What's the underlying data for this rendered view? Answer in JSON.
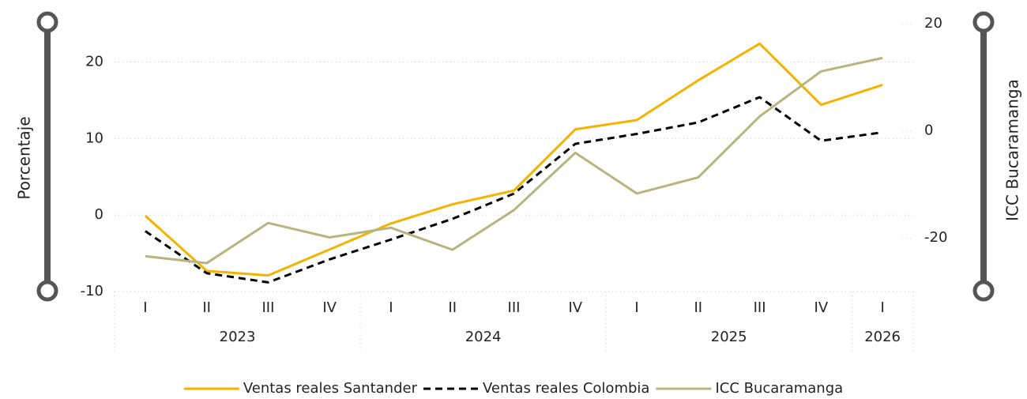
{
  "chart_data": {
    "type": "line",
    "categories": [
      "I",
      "II",
      "III",
      "IV",
      "I",
      "II",
      "III",
      "IV",
      "I",
      "II",
      "III",
      "IV",
      "I"
    ],
    "x_groups": [
      {
        "label": "2023",
        "count": 4
      },
      {
        "label": "2024",
        "count": 4
      },
      {
        "label": "2025",
        "count": 4
      },
      {
        "label": "2026",
        "count": 1
      }
    ],
    "ylabel": "Porcentaje",
    "y2label": "ICC Bucaramanga",
    "ylim": [
      -10,
      25
    ],
    "yticks": [
      -10,
      0,
      10,
      20
    ],
    "y2lim": [
      -30,
      20
    ],
    "y2ticks": [
      -20,
      0,
      20
    ],
    "grid": true,
    "legend": "bottom",
    "series": [
      {
        "name": "Ventas reales Santander",
        "color": "#F5B300",
        "dashed": false,
        "values": [
          -0.1,
          -7.3,
          -7.9,
          -4.5,
          -1.1,
          1.4,
          3.2,
          11.2,
          12.4,
          17.6,
          22.4,
          14.4,
          17.0
        ]
      },
      {
        "name": "Ventas reales Colombia",
        "color": "#000000",
        "dashed": true,
        "values": [
          -2.1,
          -7.6,
          -8.8,
          -5.8,
          -3.2,
          -0.5,
          2.8,
          9.3,
          10.6,
          12.1,
          15.4,
          9.7,
          10.8
        ]
      },
      {
        "name": "ICC Bucaramanga",
        "color": "#B5B67F",
        "dashed": false,
        "axis": "y2",
        "values": [
          -23.4,
          -24.7,
          -17.2,
          -19.9,
          -18.1,
          -22.2,
          -14.8,
          -4.1,
          -11.7,
          -8.7,
          2.7,
          11.1,
          13.6
        ]
      }
    ]
  }
}
